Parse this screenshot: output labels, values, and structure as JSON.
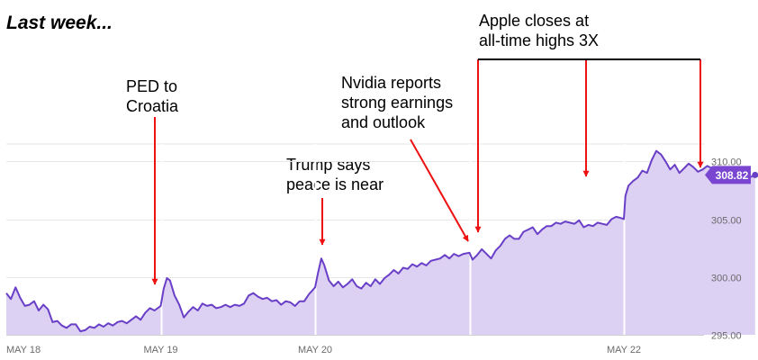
{
  "heading": "Last week...",
  "colors": {
    "line": "#6a3fc7",
    "fill": "#dcd0f3",
    "arrow": "#ee1111",
    "badge": "#7a45d1",
    "grid": "#e6e6e6"
  },
  "annotations": [
    {
      "id": "ped",
      "lines": [
        "PED to",
        "Croatia"
      ]
    },
    {
      "id": "trump",
      "lines": [
        "Trump says",
        "peace is near"
      ]
    },
    {
      "id": "nvidia",
      "lines": [
        "Nvidia reports",
        "strong earnings",
        "and outlook"
      ]
    },
    {
      "id": "apple",
      "lines": [
        "Apple closes at",
        "all-time highs 3X"
      ]
    }
  ],
  "chart_data": {
    "type": "area",
    "title": "",
    "xlabel": "",
    "ylabel": "",
    "ylim": [
      295,
      311.5
    ],
    "y_ticks": [
      {
        "value": 295,
        "label": "295.00"
      },
      {
        "value": 300,
        "label": "300.00"
      },
      {
        "value": 305,
        "label": "305.00"
      },
      {
        "value": 310,
        "label": "310.00"
      }
    ],
    "x_range": [
      0,
      4.85
    ],
    "x_ticks": [
      {
        "value": 0,
        "label": "MAY 18"
      },
      {
        "value": 1,
        "label": "MAY 19"
      },
      {
        "value": 2,
        "label": "MAY 20"
      },
      {
        "value": 4,
        "label": "MAY 22"
      }
    ],
    "session_breaks": [
      1,
      2,
      3,
      4
    ],
    "last_value": {
      "value": 308.82,
      "label": "308.82"
    },
    "series": [
      {
        "points": [
          [
            0.0,
            298.6
          ],
          [
            0.03,
            298.1
          ],
          [
            0.06,
            299.1
          ],
          [
            0.09,
            298.2
          ],
          [
            0.12,
            297.5
          ],
          [
            0.15,
            297.6
          ],
          [
            0.18,
            297.9
          ],
          [
            0.21,
            297.1
          ],
          [
            0.24,
            297.6
          ],
          [
            0.27,
            297.2
          ],
          [
            0.3,
            296.1
          ],
          [
            0.33,
            296.2
          ],
          [
            0.36,
            295.8
          ],
          [
            0.39,
            295.6
          ],
          [
            0.42,
            295.9
          ],
          [
            0.45,
            295.9
          ],
          [
            0.48,
            295.3
          ],
          [
            0.51,
            295.4
          ],
          [
            0.54,
            295.7
          ],
          [
            0.57,
            295.6
          ],
          [
            0.6,
            295.9
          ],
          [
            0.63,
            295.7
          ],
          [
            0.66,
            296.0
          ],
          [
            0.69,
            295.8
          ],
          [
            0.72,
            296.1
          ],
          [
            0.75,
            296.2
          ],
          [
            0.78,
            296.0
          ],
          [
            0.81,
            296.3
          ],
          [
            0.84,
            296.6
          ],
          [
            0.87,
            296.3
          ],
          [
            0.9,
            296.9
          ],
          [
            0.93,
            297.3
          ],
          [
            0.96,
            297.1
          ],
          [
            1.0,
            297.5
          ],
          [
            1.02,
            299.0
          ],
          [
            1.04,
            299.9
          ],
          [
            1.06,
            299.7
          ],
          [
            1.09,
            298.4
          ],
          [
            1.12,
            297.6
          ],
          [
            1.15,
            296.5
          ],
          [
            1.18,
            297.0
          ],
          [
            1.21,
            297.4
          ],
          [
            1.24,
            297.1
          ],
          [
            1.27,
            297.7
          ],
          [
            1.3,
            297.5
          ],
          [
            1.33,
            297.6
          ],
          [
            1.36,
            297.3
          ],
          [
            1.39,
            297.4
          ],
          [
            1.42,
            297.6
          ],
          [
            1.45,
            297.4
          ],
          [
            1.48,
            297.6
          ],
          [
            1.51,
            297.5
          ],
          [
            1.54,
            297.7
          ],
          [
            1.57,
            298.4
          ],
          [
            1.6,
            298.6
          ],
          [
            1.63,
            298.3
          ],
          [
            1.66,
            298.1
          ],
          [
            1.69,
            298.2
          ],
          [
            1.72,
            297.9
          ],
          [
            1.75,
            298.0
          ],
          [
            1.78,
            297.6
          ],
          [
            1.81,
            297.9
          ],
          [
            1.84,
            297.8
          ],
          [
            1.87,
            297.5
          ],
          [
            1.9,
            297.9
          ],
          [
            1.93,
            297.9
          ],
          [
            1.96,
            298.5
          ],
          [
            2.0,
            299.1
          ],
          [
            2.02,
            300.4
          ],
          [
            2.04,
            301.6
          ],
          [
            2.06,
            301.0
          ],
          [
            2.09,
            299.7
          ],
          [
            2.12,
            299.2
          ],
          [
            2.15,
            299.6
          ],
          [
            2.18,
            299.1
          ],
          [
            2.21,
            299.4
          ],
          [
            2.24,
            299.8
          ],
          [
            2.27,
            299.2
          ],
          [
            2.3,
            299.0
          ],
          [
            2.33,
            299.5
          ],
          [
            2.36,
            299.2
          ],
          [
            2.39,
            299.8
          ],
          [
            2.42,
            299.4
          ],
          [
            2.45,
            299.9
          ],
          [
            2.48,
            300.2
          ],
          [
            2.51,
            300.6
          ],
          [
            2.54,
            300.3
          ],
          [
            2.57,
            300.8
          ],
          [
            2.6,
            300.7
          ],
          [
            2.63,
            301.1
          ],
          [
            2.66,
            300.9
          ],
          [
            2.69,
            301.2
          ],
          [
            2.72,
            301.0
          ],
          [
            2.75,
            301.4
          ],
          [
            2.78,
            301.5
          ],
          [
            2.81,
            301.6
          ],
          [
            2.84,
            301.9
          ],
          [
            2.87,
            301.6
          ],
          [
            2.9,
            302.0
          ],
          [
            2.93,
            301.8
          ],
          [
            2.96,
            302.0
          ],
          [
            3.0,
            302.1
          ],
          [
            3.02,
            301.5
          ],
          [
            3.05,
            301.9
          ],
          [
            3.08,
            302.4
          ],
          [
            3.11,
            302.0
          ],
          [
            3.14,
            301.6
          ],
          [
            3.17,
            302.3
          ],
          [
            3.2,
            302.7
          ],
          [
            3.23,
            303.3
          ],
          [
            3.26,
            303.6
          ],
          [
            3.29,
            303.3
          ],
          [
            3.32,
            303.3
          ],
          [
            3.35,
            303.9
          ],
          [
            3.38,
            304.1
          ],
          [
            3.41,
            304.3
          ],
          [
            3.44,
            303.7
          ],
          [
            3.47,
            304.1
          ],
          [
            3.5,
            304.4
          ],
          [
            3.53,
            304.4
          ],
          [
            3.56,
            304.7
          ],
          [
            3.59,
            304.6
          ],
          [
            3.62,
            304.8
          ],
          [
            3.65,
            304.7
          ],
          [
            3.68,
            304.6
          ],
          [
            3.71,
            304.9
          ],
          [
            3.74,
            304.3
          ],
          [
            3.77,
            304.5
          ],
          [
            3.8,
            304.4
          ],
          [
            3.83,
            304.7
          ],
          [
            3.86,
            304.6
          ],
          [
            3.89,
            304.5
          ],
          [
            3.92,
            305.0
          ],
          [
            3.95,
            305.2
          ],
          [
            3.98,
            305.1
          ],
          [
            4.0,
            305.0
          ],
          [
            4.01,
            307.0
          ],
          [
            4.03,
            307.9
          ],
          [
            4.06,
            308.3
          ],
          [
            4.09,
            308.6
          ],
          [
            4.12,
            309.2
          ],
          [
            4.15,
            309.0
          ],
          [
            4.18,
            310.1
          ],
          [
            4.21,
            310.9
          ],
          [
            4.24,
            310.6
          ],
          [
            4.27,
            310.0
          ],
          [
            4.3,
            309.3
          ],
          [
            4.33,
            309.7
          ],
          [
            4.36,
            309.0
          ],
          [
            4.39,
            309.4
          ],
          [
            4.42,
            309.8
          ],
          [
            4.45,
            309.5
          ],
          [
            4.48,
            309.1
          ],
          [
            4.51,
            309.3
          ],
          [
            4.54,
            309.6
          ],
          [
            4.57,
            309.4
          ],
          [
            4.6,
            309.1
          ],
          [
            4.63,
            309.0
          ],
          [
            4.66,
            309.2
          ],
          [
            4.69,
            309.0
          ],
          [
            4.72,
            309.1
          ],
          [
            4.75,
            308.9
          ],
          [
            4.78,
            309.0
          ],
          [
            4.81,
            308.6
          ],
          [
            4.83,
            308.7
          ],
          [
            4.85,
            308.82
          ]
        ]
      }
    ]
  }
}
